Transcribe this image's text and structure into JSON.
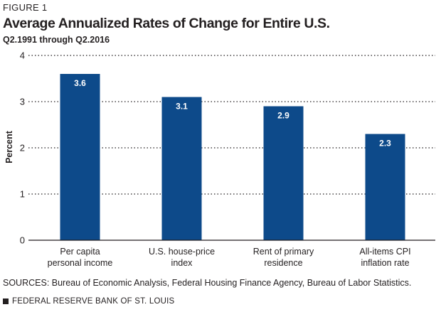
{
  "figure_label": "FIGURE 1",
  "source_text": "SOURCES: Bureau of Economic Analysis, Federal Housing Finance Agency, Bureau of Labor Statistics.",
  "footer_text": "FEDERAL RESERVE BANK OF ST. LOUIS",
  "colors": {
    "bar": "#0d4a8a",
    "text": "#231f20",
    "grid": "#231f20"
  },
  "chart_data": {
    "type": "bar",
    "title": "Average Annualized Rates of Change for Entire U.S.",
    "subtitle": "Q2.1991 through Q2.2016",
    "ylabel": "Percent",
    "xlabel": "",
    "ylim": [
      0,
      4
    ],
    "yticks": [
      "0",
      "1",
      "2",
      "3",
      "4"
    ],
    "grid": "dotted horizontal",
    "categories": [
      [
        "Per capita",
        "personal income"
      ],
      [
        "U.S. house-price",
        "index"
      ],
      [
        "Rent of primary",
        "residence"
      ],
      [
        "All-items CPI",
        "inflation rate"
      ]
    ],
    "values": [
      3.6,
      3.1,
      2.9,
      2.3
    ],
    "value_labels": [
      "3.6",
      "3.1",
      "2.9",
      "2.3"
    ]
  }
}
